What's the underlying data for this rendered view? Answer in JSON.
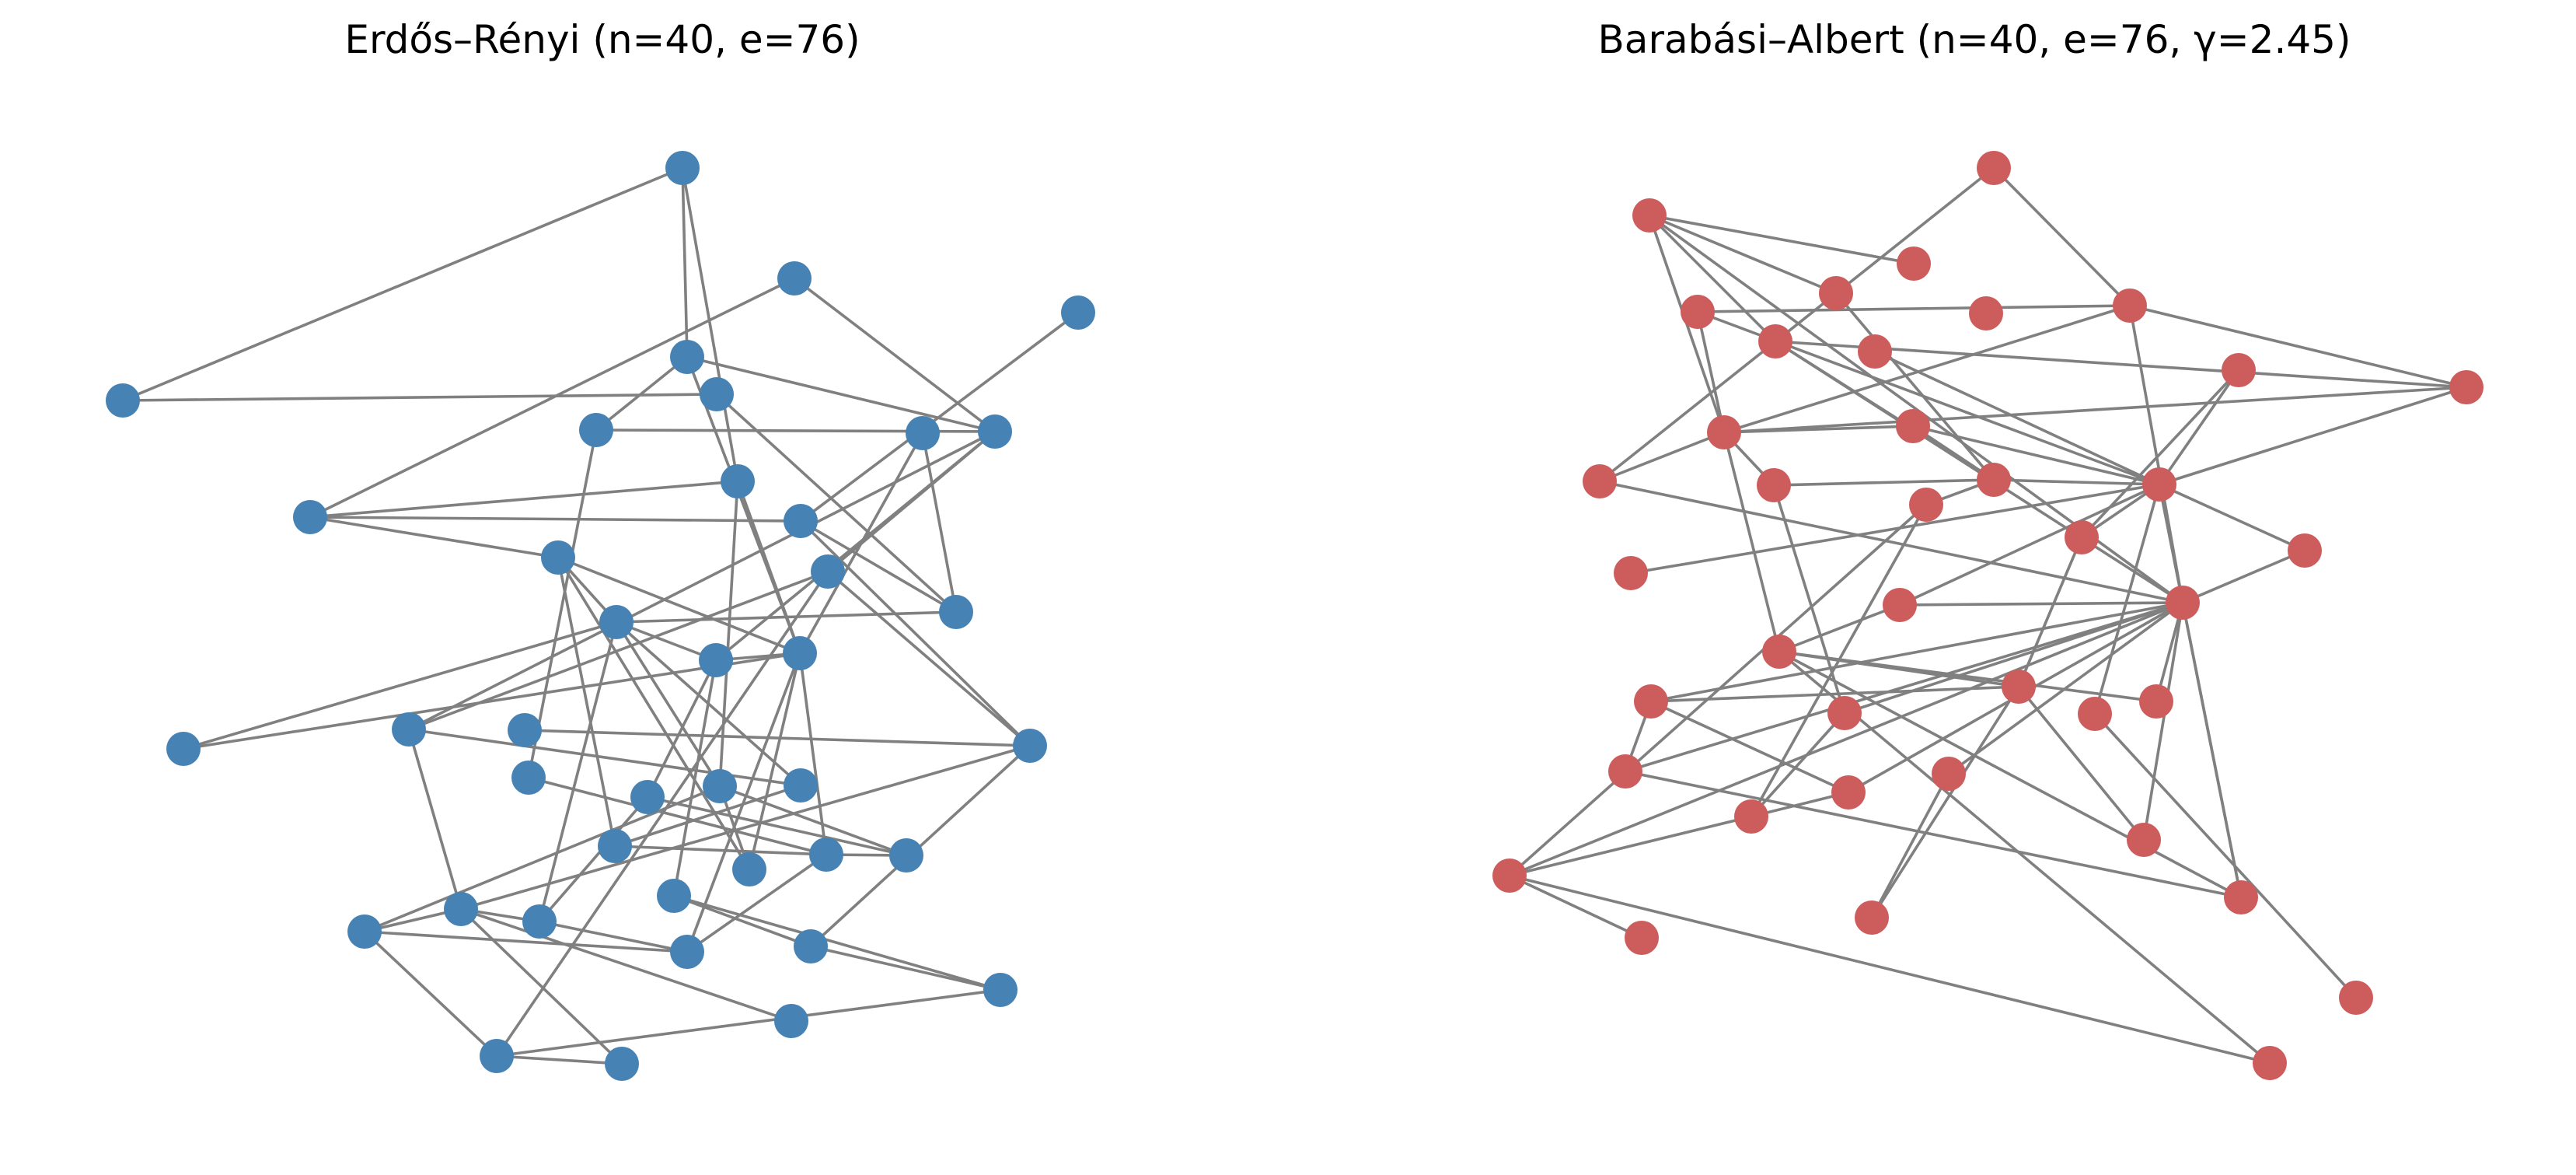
{
  "figure": {
    "panels": [
      {
        "id": "er",
        "title": "Erdős–Rényi (n=40, e=76)",
        "node_color": "#4682b4",
        "edge_color": "#808080"
      },
      {
        "id": "ba",
        "title": "Barabási–Albert (n=40, e=76, γ=2.45)",
        "node_color": "#cd5c5c",
        "edge_color": "#808080"
      }
    ]
  }
}
